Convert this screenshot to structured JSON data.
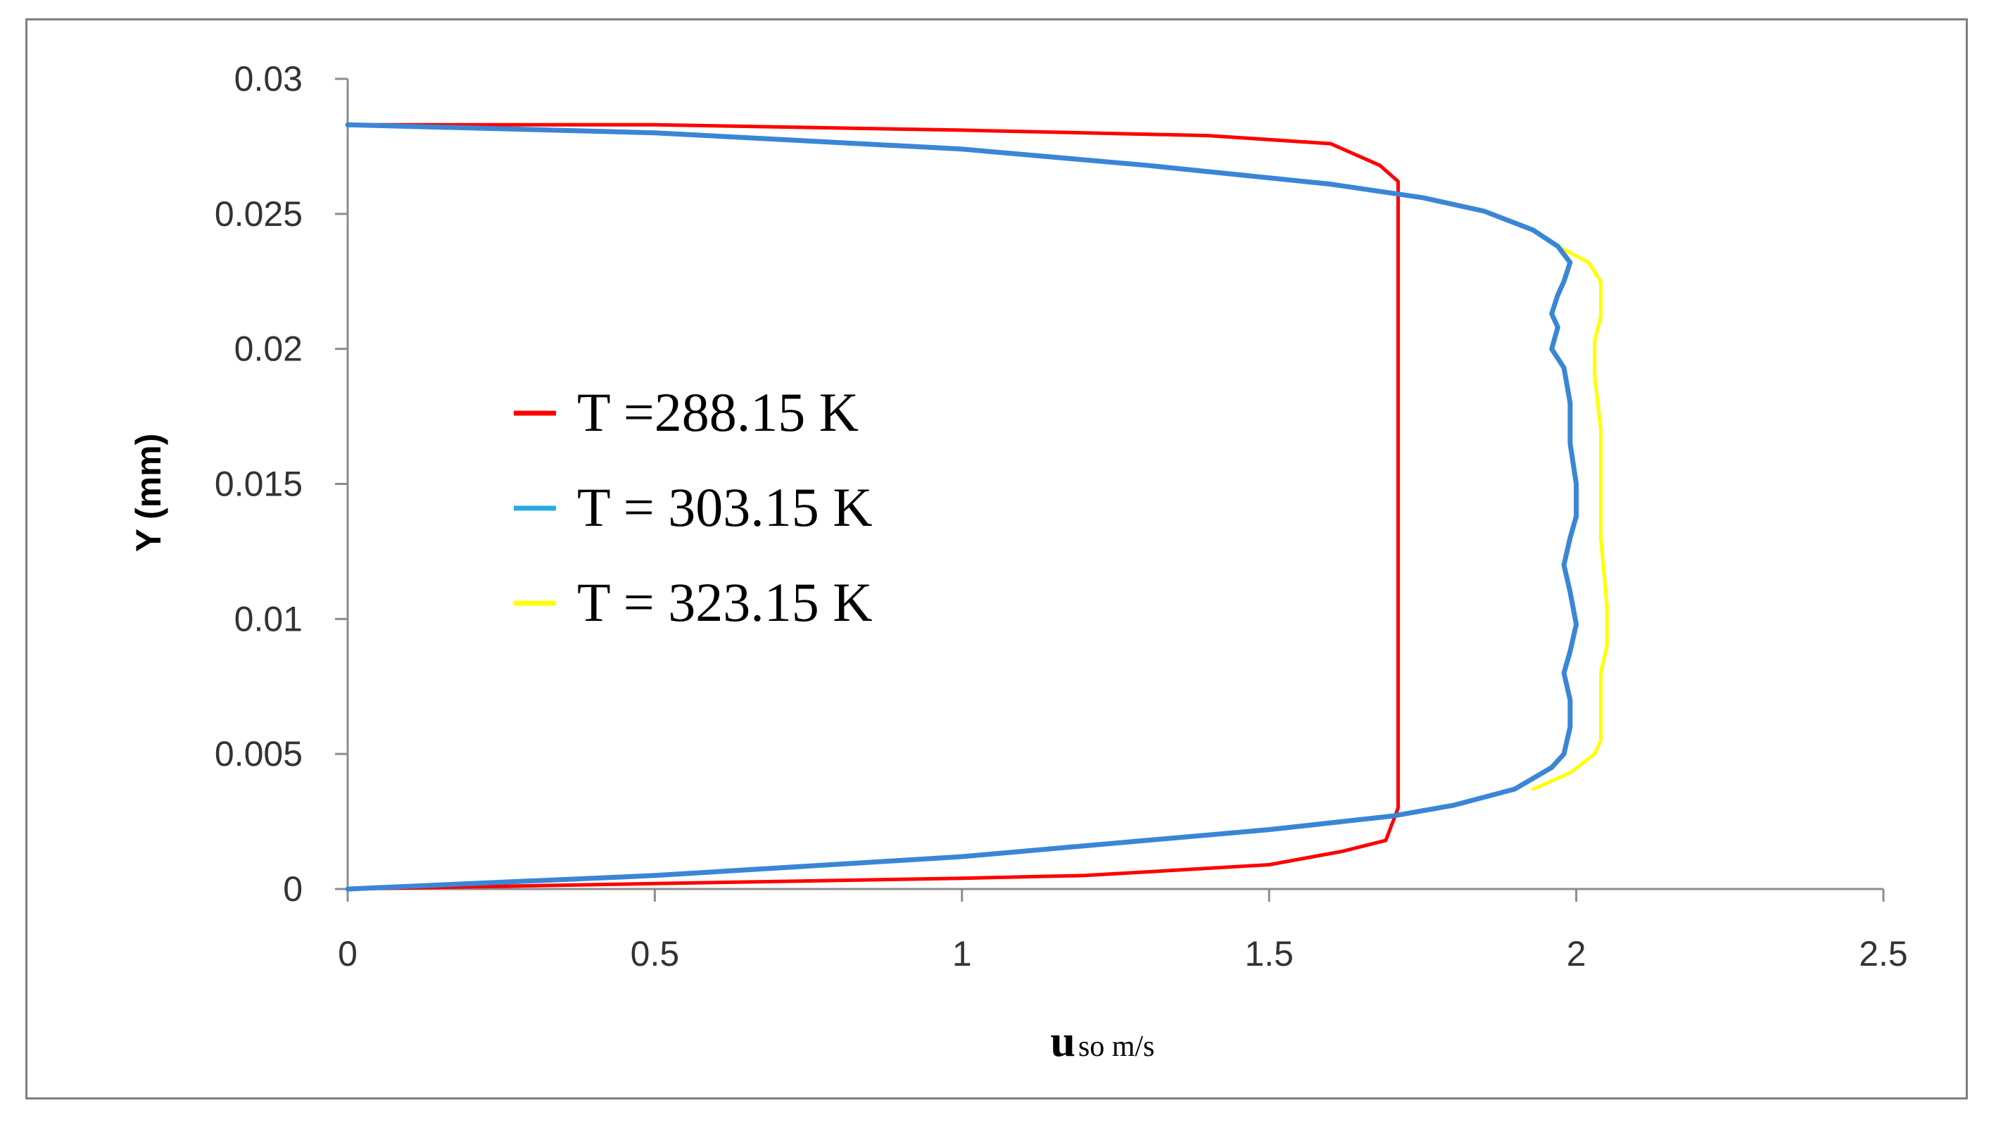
{
  "chart_data": {
    "type": "line",
    "title": "",
    "xlabel_main": "u",
    "xlabel_sub": "so m/s",
    "ylabel": "Y (mm)",
    "xlim": [
      0,
      2.5
    ],
    "ylim": [
      0,
      0.03
    ],
    "x_ticks": [
      "0",
      "0.5",
      "1",
      "1.5",
      "2",
      "2.5"
    ],
    "y_ticks": [
      "0",
      "0.005",
      "0.01",
      "0.015",
      "0.02",
      "0.025",
      "0.03"
    ],
    "grid": false,
    "legend_position": "center-left",
    "series": [
      {
        "name": "T =288.15 K",
        "color": "#ff0000",
        "points": [
          [
            0,
            0.0283
          ],
          [
            0.5,
            0.0283
          ],
          [
            1.0,
            0.0281
          ],
          [
            1.4,
            0.0279
          ],
          [
            1.6,
            0.0276
          ],
          [
            1.68,
            0.0268
          ],
          [
            1.71,
            0.0262
          ],
          [
            1.71,
            0.025
          ],
          [
            1.71,
            0.02
          ],
          [
            1.71,
            0.015
          ],
          [
            1.71,
            0.01
          ],
          [
            1.71,
            0.005
          ],
          [
            1.71,
            0.003
          ],
          [
            1.69,
            0.0018
          ],
          [
            1.62,
            0.0014
          ],
          [
            1.5,
            0.0009
          ],
          [
            1.2,
            0.0005
          ],
          [
            1.0,
            0.0004
          ],
          [
            0.5,
            0.0002
          ],
          [
            0,
            0
          ]
        ]
      },
      {
        "name": "T = 303.15 K",
        "color": "#3a86d6",
        "points": [
          [
            0,
            0.0283
          ],
          [
            0.5,
            0.028
          ],
          [
            1.0,
            0.0274
          ],
          [
            1.3,
            0.0268
          ],
          [
            1.6,
            0.0261
          ],
          [
            1.75,
            0.0256
          ],
          [
            1.85,
            0.0251
          ],
          [
            1.93,
            0.0244
          ],
          [
            1.97,
            0.0238
          ],
          [
            1.99,
            0.0232
          ],
          [
            1.98,
            0.0225
          ],
          [
            1.97,
            0.022
          ],
          [
            1.96,
            0.0213
          ],
          [
            1.97,
            0.0208
          ],
          [
            1.96,
            0.02
          ],
          [
            1.98,
            0.0193
          ],
          [
            1.99,
            0.018
          ],
          [
            1.99,
            0.0165
          ],
          [
            2.0,
            0.015
          ],
          [
            2.0,
            0.0138
          ],
          [
            1.99,
            0.013
          ],
          [
            1.98,
            0.012
          ],
          [
            1.99,
            0.011
          ],
          [
            2.0,
            0.0098
          ],
          [
            1.99,
            0.0088
          ],
          [
            1.98,
            0.008
          ],
          [
            1.99,
            0.007
          ],
          [
            1.99,
            0.006
          ],
          [
            1.98,
            0.005
          ],
          [
            1.96,
            0.0045
          ],
          [
            1.9,
            0.0037
          ],
          [
            1.8,
            0.0031
          ],
          [
            1.7,
            0.0027
          ],
          [
            1.5,
            0.0022
          ],
          [
            1.2,
            0.0016
          ],
          [
            1.0,
            0.0012
          ],
          [
            0.5,
            0.0005
          ],
          [
            0.2,
            0.0002
          ],
          [
            0,
            0
          ]
        ]
      },
      {
        "name": "T = 323.15 K",
        "color": "#ffff00",
        "points": [
          [
            1.97,
            0.0238
          ],
          [
            2.02,
            0.0232
          ],
          [
            2.04,
            0.0225
          ],
          [
            2.04,
            0.0212
          ],
          [
            2.03,
            0.0203
          ],
          [
            2.03,
            0.019
          ],
          [
            2.04,
            0.017
          ],
          [
            2.04,
            0.015
          ],
          [
            2.04,
            0.013
          ],
          [
            2.05,
            0.0105
          ],
          [
            2.05,
            0.009
          ],
          [
            2.04,
            0.008
          ],
          [
            2.04,
            0.0065
          ],
          [
            2.04,
            0.0055
          ],
          [
            2.03,
            0.005
          ],
          [
            1.99,
            0.0043
          ],
          [
            1.93,
            0.0037
          ]
        ]
      }
    ]
  }
}
